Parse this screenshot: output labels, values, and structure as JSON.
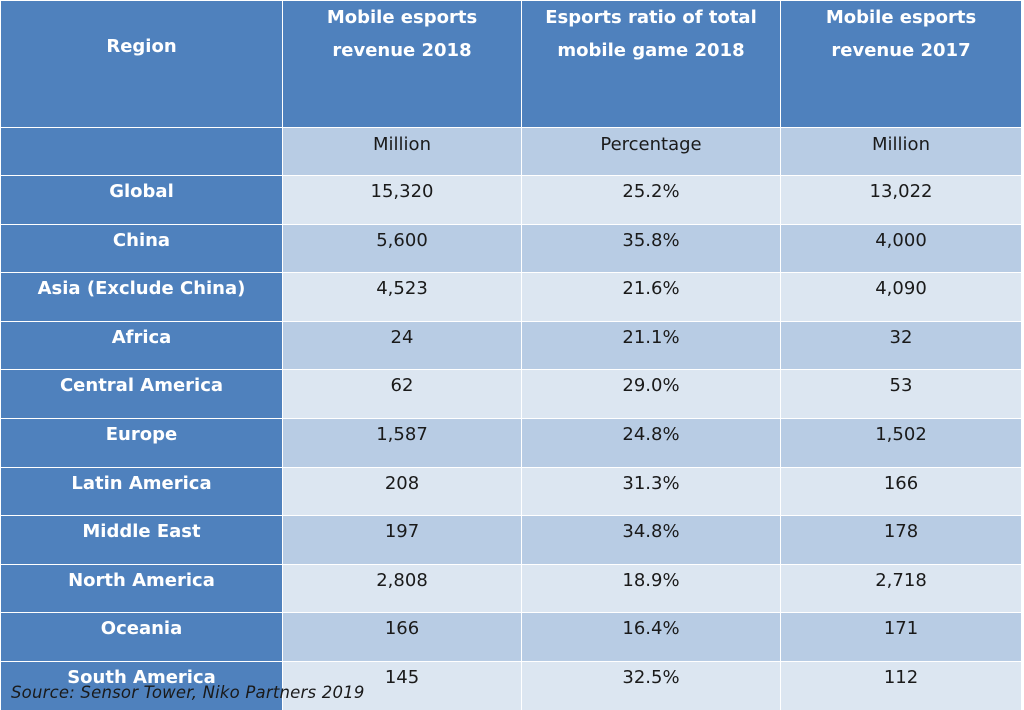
{
  "table": {
    "headers": [
      {
        "label": "Region"
      },
      {
        "label": "Mobile esports revenue 2018",
        "line1": "Mobile esports",
        "line2": "revenue 2018"
      },
      {
        "label": "Esports ratio of total mobile game 2018",
        "line1": "Esports ratio of total",
        "line2": "mobile game 2018"
      },
      {
        "label": "Mobile esports revenue 2017",
        "line1": "Mobile esports",
        "line2": "revenue 2017"
      }
    ],
    "units": [
      "",
      "Million",
      "Percentage",
      "Million"
    ],
    "rows": [
      {
        "region": "Global",
        "revenue_2018": "15,320",
        "ratio_2018": "25.2%",
        "revenue_2017": "13,022"
      },
      {
        "region": "China",
        "revenue_2018": "5,600",
        "ratio_2018": "35.8%",
        "revenue_2017": "4,000"
      },
      {
        "region": "Asia (Exclude China)",
        "revenue_2018": "4,523",
        "ratio_2018": "21.6%",
        "revenue_2017": "4,090"
      },
      {
        "region": "Africa",
        "revenue_2018": "24",
        "ratio_2018": "21.1%",
        "revenue_2017": "32"
      },
      {
        "region": "Central America",
        "revenue_2018": "62",
        "ratio_2018": "29.0%",
        "revenue_2017": "53"
      },
      {
        "region": "Europe",
        "revenue_2018": "1,587",
        "ratio_2018": "24.8%",
        "revenue_2017": "1,502"
      },
      {
        "region": "Latin America",
        "revenue_2018": "208",
        "ratio_2018": "31.3%",
        "revenue_2017": "166"
      },
      {
        "region": "Middle East",
        "revenue_2018": "197",
        "ratio_2018": "34.8%",
        "revenue_2017": "178"
      },
      {
        "region": "North America",
        "revenue_2018": "2,808",
        "ratio_2018": "18.9%",
        "revenue_2017": "2,718"
      },
      {
        "region": "Oceania",
        "revenue_2018": "166",
        "ratio_2018": "16.4%",
        "revenue_2017": "171"
      },
      {
        "region": "South America",
        "revenue_2018": "145",
        "ratio_2018": "32.5%",
        "revenue_2017": "112"
      }
    ]
  },
  "source": "Source: Sensor Tower, Niko Partners 2019",
  "colors": {
    "header_bg": "#4f81bd",
    "header_text": "#ffffff",
    "row_light": "#dce6f1",
    "row_dark": "#b8cce4",
    "body_text": "#1a1a1a"
  }
}
